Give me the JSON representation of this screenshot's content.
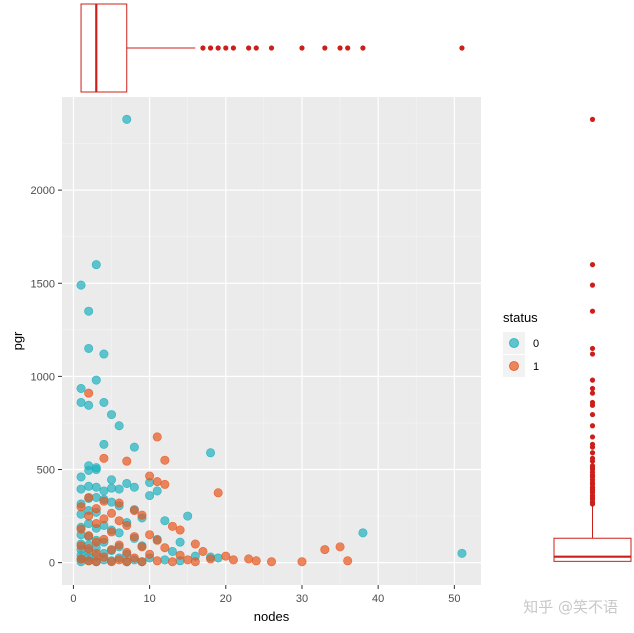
{
  "chart_data": {
    "type": "scatter",
    "xlabel": "nodes",
    "ylabel": "pgr",
    "xlim": [
      -1.5,
      53.5
    ],
    "ylim": [
      -120,
      2500
    ],
    "x_ticks": [
      0,
      10,
      20,
      30,
      40,
      50
    ],
    "y_ticks": [
      0,
      500,
      1000,
      1500,
      2000
    ],
    "grid": true,
    "legend": {
      "title": "status",
      "placement": "right",
      "entries": [
        {
          "label": "0",
          "color": "#1FB0BD"
        },
        {
          "label": "1",
          "color": "#E8571F"
        }
      ]
    },
    "series": [
      {
        "label": "0",
        "color": "#1FB0BD",
        "points": [
          [
            7,
            2380
          ],
          [
            1,
            1490
          ],
          [
            3,
            1600
          ],
          [
            2,
            1350
          ],
          [
            2,
            1150
          ],
          [
            4,
            1120
          ],
          [
            1,
            935
          ],
          [
            3,
            980
          ],
          [
            1,
            860
          ],
          [
            2,
            845
          ],
          [
            4,
            860
          ],
          [
            5,
            795
          ],
          [
            6,
            735
          ],
          [
            4,
            635
          ],
          [
            8,
            620
          ],
          [
            18,
            590
          ],
          [
            2,
            520
          ],
          [
            3,
            510
          ],
          [
            2,
            495
          ],
          [
            3,
            500
          ],
          [
            1,
            460
          ],
          [
            5,
            445
          ],
          [
            10,
            430
          ],
          [
            7,
            425
          ],
          [
            8,
            405
          ],
          [
            2,
            410
          ],
          [
            3,
            405
          ],
          [
            1,
            395
          ],
          [
            5,
            400
          ],
          [
            6,
            395
          ],
          [
            4,
            385
          ],
          [
            11,
            385
          ],
          [
            10,
            360
          ],
          [
            3,
            350
          ],
          [
            2,
            345
          ],
          [
            4,
            340
          ],
          [
            5,
            325
          ],
          [
            1,
            315
          ],
          [
            6,
            305
          ],
          [
            8,
            285
          ],
          [
            2,
            280
          ],
          [
            3,
            270
          ],
          [
            1,
            260
          ],
          [
            12,
            225
          ],
          [
            9,
            240
          ],
          [
            15,
            250
          ],
          [
            7,
            215
          ],
          [
            2,
            210
          ],
          [
            4,
            200
          ],
          [
            1,
            190
          ],
          [
            3,
            185
          ],
          [
            5,
            175
          ],
          [
            6,
            160
          ],
          [
            1,
            150
          ],
          [
            2,
            140
          ],
          [
            8,
            130
          ],
          [
            11,
            125
          ],
          [
            3,
            120
          ],
          [
            4,
            110
          ],
          [
            14,
            110
          ],
          [
            1,
            100
          ],
          [
            2,
            95
          ],
          [
            9,
            90
          ],
          [
            6,
            85
          ],
          [
            3,
            80
          ],
          [
            1,
            70
          ],
          [
            5,
            65
          ],
          [
            2,
            60
          ],
          [
            13,
            60
          ],
          [
            4,
            50
          ],
          [
            7,
            45
          ],
          [
            1,
            40
          ],
          [
            3,
            35
          ],
          [
            16,
            35
          ],
          [
            2,
            30
          ],
          [
            6,
            25
          ],
          [
            10,
            25
          ],
          [
            1,
            20
          ],
          [
            4,
            15
          ],
          [
            8,
            15
          ],
          [
            12,
            15
          ],
          [
            2,
            10
          ],
          [
            5,
            10
          ],
          [
            18,
            30
          ],
          [
            19,
            25
          ],
          [
            1,
            5
          ],
          [
            3,
            5
          ],
          [
            7,
            5
          ],
          [
            9,
            5
          ],
          [
            14,
            10
          ],
          [
            38,
            160
          ],
          [
            51,
            50
          ]
        ]
      },
      {
        "label": "1",
        "color": "#E8571F",
        "points": [
          [
            2,
            910
          ],
          [
            11,
            675
          ],
          [
            12,
            550
          ],
          [
            4,
            560
          ],
          [
            7,
            545
          ],
          [
            10,
            465
          ],
          [
            11,
            435
          ],
          [
            12,
            420
          ],
          [
            19,
            375
          ],
          [
            2,
            350
          ],
          [
            4,
            330
          ],
          [
            6,
            320
          ],
          [
            1,
            300
          ],
          [
            3,
            290
          ],
          [
            8,
            280
          ],
          [
            5,
            265
          ],
          [
            2,
            250
          ],
          [
            9,
            255
          ],
          [
            4,
            235
          ],
          [
            6,
            225
          ],
          [
            3,
            210
          ],
          [
            7,
            200
          ],
          [
            13,
            195
          ],
          [
            1,
            180
          ],
          [
            14,
            175
          ],
          [
            5,
            165
          ],
          [
            10,
            150
          ],
          [
            2,
            145
          ],
          [
            8,
            140
          ],
          [
            4,
            125
          ],
          [
            11,
            120
          ],
          [
            3,
            110
          ],
          [
            16,
            100
          ],
          [
            6,
            95
          ],
          [
            1,
            90
          ],
          [
            9,
            85
          ],
          [
            12,
            80
          ],
          [
            2,
            75
          ],
          [
            5,
            70
          ],
          [
            17,
            60
          ],
          [
            7,
            55
          ],
          [
            3,
            50
          ],
          [
            10,
            45
          ],
          [
            14,
            40
          ],
          [
            20,
            35
          ],
          [
            4,
            30
          ],
          [
            8,
            25
          ],
          [
            1,
            20
          ],
          [
            6,
            15
          ],
          [
            15,
            15
          ],
          [
            2,
            10
          ],
          [
            11,
            10
          ],
          [
            18,
            20
          ],
          [
            21,
            15
          ],
          [
            13,
            5
          ],
          [
            5,
            5
          ],
          [
            9,
            5
          ],
          [
            3,
            5
          ],
          [
            7,
            5
          ],
          [
            16,
            5
          ],
          [
            23,
            20
          ],
          [
            24,
            10
          ],
          [
            26,
            5
          ],
          [
            30,
            5
          ],
          [
            33,
            70
          ],
          [
            35,
            85
          ],
          [
            36,
            10
          ]
        ]
      }
    ],
    "marginal_boxplots": {
      "color": "#CC1F1A",
      "nodes": {
        "q1": 1,
        "median": 3,
        "q3": 7,
        "whisker_low": 1,
        "whisker_high": 16,
        "outliers": [
          17,
          18,
          19,
          20,
          21,
          23,
          24,
          26,
          30,
          33,
          35,
          36,
          38,
          51
        ]
      },
      "pgr": {
        "q1": 7,
        "median": 32,
        "q3": 131,
        "whisker_low": 0,
        "whisker_high": 305,
        "outliers": [
          315,
          325,
          340,
          350,
          360,
          375,
          385,
          395,
          405,
          420,
          430,
          445,
          460,
          470,
          485,
          500,
          510,
          520,
          545,
          560,
          590,
          620,
          635,
          675,
          735,
          795,
          845,
          860,
          910,
          935,
          980,
          1120,
          1150,
          1350,
          1490,
          1600,
          2380
        ]
      }
    }
  },
  "watermark": "知乎 @笑不语"
}
